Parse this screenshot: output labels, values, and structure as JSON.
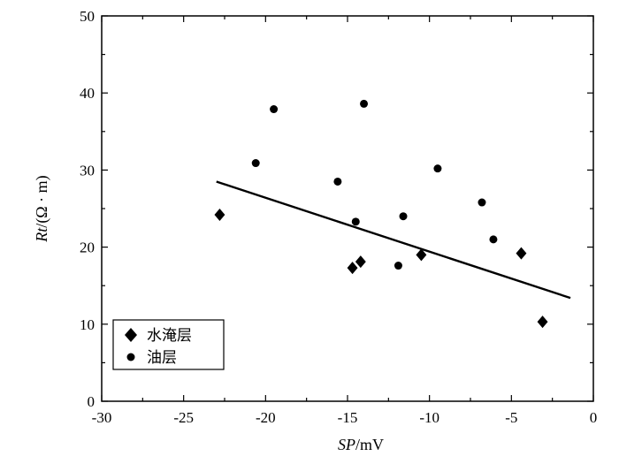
{
  "chart_data": {
    "type": "scatter",
    "title": "",
    "xlabel": {
      "italic": "SP",
      "rest": "/mV"
    },
    "ylabel": {
      "italic": "Rt",
      "rest": "/(Ω · m)"
    },
    "xlim": [
      -30,
      0
    ],
    "ylim": [
      0,
      50
    ],
    "xticks": [
      -30,
      -25,
      -20,
      -15,
      -10,
      -5,
      0
    ],
    "yticks": [
      0,
      10,
      20,
      30,
      40,
      50
    ],
    "xtick_labels": [
      "-30",
      "-25",
      "-20",
      "-15",
      "-10",
      "-5",
      "0"
    ],
    "ytick_labels": [
      "0",
      "10",
      "20",
      "30",
      "40",
      "50"
    ],
    "grid": false,
    "legend_position": "bottom-left",
    "series": [
      {
        "name": "水淹层",
        "marker": "diamond",
        "color": "#000000",
        "points": [
          {
            "x": -22.8,
            "y": 24.2
          },
          {
            "x": -14.7,
            "y": 17.3
          },
          {
            "x": -14.2,
            "y": 18.1
          },
          {
            "x": -10.5,
            "y": 19.0
          },
          {
            "x": -4.4,
            "y": 19.2
          },
          {
            "x": -3.1,
            "y": 10.3
          }
        ]
      },
      {
        "name": "油层",
        "marker": "circle",
        "color": "#000000",
        "points": [
          {
            "x": -20.6,
            "y": 30.9
          },
          {
            "x": -19.5,
            "y": 37.9
          },
          {
            "x": -15.6,
            "y": 28.5
          },
          {
            "x": -14.5,
            "y": 23.3
          },
          {
            "x": -14.0,
            "y": 38.6
          },
          {
            "x": -11.9,
            "y": 17.6
          },
          {
            "x": -11.6,
            "y": 24.0
          },
          {
            "x": -9.5,
            "y": 30.2
          },
          {
            "x": -6.8,
            "y": 25.8
          },
          {
            "x": -6.1,
            "y": 21.0
          }
        ]
      }
    ],
    "trendline": {
      "x": [
        -23.0,
        -1.4
      ],
      "y": [
        28.5,
        13.4
      ],
      "color": "#000000"
    }
  }
}
